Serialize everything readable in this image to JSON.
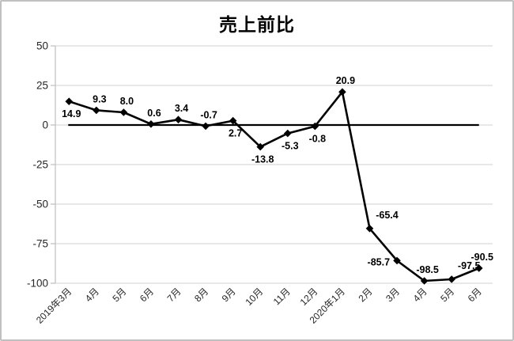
{
  "frame": {
    "background": "#ffffff",
    "border_color": "#c0c0c0"
  },
  "chart_data": {
    "type": "line",
    "title": "売上前比",
    "categories": [
      "2019年3月",
      "4月",
      "5月",
      "6月",
      "7月",
      "8月",
      "9月",
      "10月",
      "11月",
      "12月",
      "2020年1月",
      "2月",
      "3月",
      "4月",
      "5月",
      "6月"
    ],
    "values": [
      14.9,
      9.3,
      8.0,
      0.6,
      3.4,
      -0.7,
      2.7,
      -13.8,
      -5.3,
      -0.8,
      20.9,
      -65.4,
      -85.7,
      -98.5,
      -97.5,
      -90.5
    ],
    "data_labels": [
      "14.9",
      "9.3",
      "8.0",
      "0.6",
      "3.4",
      "-0.7",
      "2.7",
      "-13.8",
      "-5.3",
      "-0.8",
      "20.9",
      "-65.4",
      "-85.7",
      "-98.5",
      "-97.5",
      "-90.5"
    ],
    "label_positions": [
      "below",
      "above",
      "above",
      "above",
      "above",
      "above",
      "below",
      "below",
      "below",
      "below",
      "above",
      "above-right",
      "left",
      "above",
      "above-right",
      "above"
    ],
    "ylabel": "",
    "xlabel": "",
    "ylim": [
      -100,
      50
    ],
    "yticks": [
      50,
      25,
      0,
      -25,
      -50,
      -75,
      -100
    ],
    "x_label_rotation_deg": 45,
    "grid": "horizontal",
    "legend": "none",
    "marker": "diamond",
    "zero_line": true,
    "colors": {
      "series": "#000000",
      "zero_line": "#000000",
      "gridline": "#d9d9d9",
      "axis": "#bfbfbf",
      "tick_label": "#262626",
      "data_label": "#000000",
      "title": "#000000"
    }
  }
}
